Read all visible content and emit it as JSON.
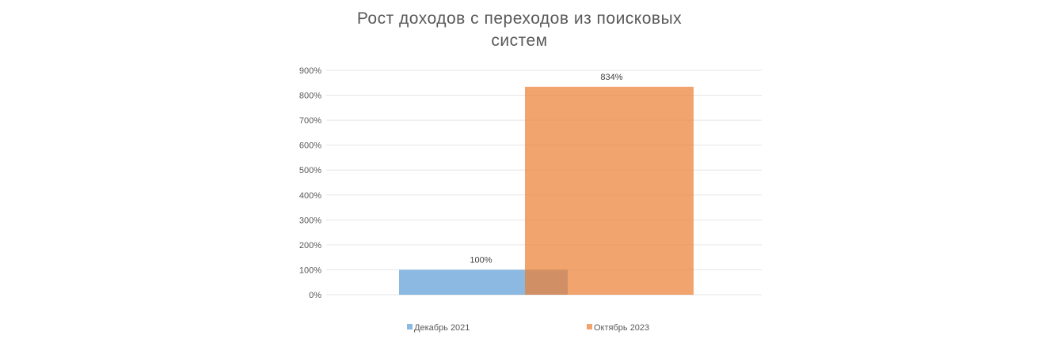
{
  "chart_data": {
    "type": "bar",
    "title_lines": [
      "Рост доходов с переходов из поисковых",
      "систем"
    ],
    "categories": [
      ""
    ],
    "series": [
      {
        "name": "Декабрь 2021",
        "values": [
          100
        ],
        "color": "#5B9BD5",
        "data_label": "100%"
      },
      {
        "name": "Октябрь 2023",
        "values": [
          834
        ],
        "color": "#ED7D31",
        "data_label": "834%"
      }
    ],
    "ylim": [
      0,
      900
    ],
    "yticks": [
      0,
      100,
      200,
      300,
      400,
      500,
      600,
      700,
      800,
      900
    ],
    "ytick_labels": [
      "0%",
      "100%",
      "200%",
      "300%",
      "400%",
      "500%",
      "600%",
      "700%",
      "800%",
      "900%"
    ],
    "grid": true,
    "legend_position": "bottom",
    "xlabel": "",
    "ylabel": ""
  }
}
